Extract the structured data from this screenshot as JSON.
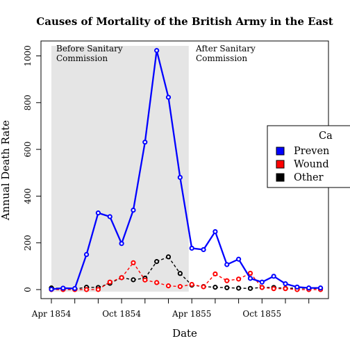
{
  "chart_data": {
    "type": "line",
    "title": "Causes of Mortality of the British Army in the East",
    "xlabel": "Date",
    "ylabel": "Annual Death Rate",
    "x_ticks": [
      "Apr 1854",
      "Oct 1854",
      "Apr 1855",
      "Oct 1855"
    ],
    "y_ticks": [
      0,
      200,
      400,
      600,
      800,
      1000
    ],
    "ylim": [
      -30,
      1050
    ],
    "x": [
      "Apr 1854",
      "May 1854",
      "Jun 1854",
      "Jul 1854",
      "Aug 1854",
      "Sep 1854",
      "Oct 1854",
      "Nov 1854",
      "Dec 1854",
      "Jan 1855",
      "Feb 1855",
      "Mar 1855",
      "Apr 1855",
      "May 1855",
      "Jun 1855",
      "Jul 1855",
      "Aug 1855",
      "Sep 1855",
      "Oct 1855",
      "Nov 1855",
      "Dec 1855",
      "Jan 1856",
      "Feb 1856",
      "Mar 1856"
    ],
    "series": [
      {
        "name": "Preventable",
        "color": "#0000ff",
        "line_style": "solid",
        "values": [
          1.4,
          6.2,
          4.7,
          150,
          328,
          312,
          197,
          340,
          631,
          1023,
          823,
          480,
          177,
          171,
          248,
          107,
          130,
          48,
          32,
          57,
          25,
          11,
          7,
          7
        ]
      },
      {
        "name": "Wounds",
        "color": "#ff0000",
        "line_style": "dashed",
        "values": [
          0,
          0,
          0,
          0,
          0.4,
          32,
          51,
          115,
          41,
          30,
          16,
          13,
          22,
          12,
          67,
          38,
          45,
          70,
          9,
          4,
          4,
          0,
          0,
          0
        ]
      },
      {
        "name": "Other",
        "color": "#000000",
        "line_style": "dashed",
        "values": [
          7,
          5,
          2.5,
          10,
          9,
          27,
          51,
          42,
          49,
          120,
          140,
          69,
          19,
          13,
          10,
          8,
          6,
          5,
          9,
          9,
          5,
          7,
          5,
          5
        ]
      }
    ],
    "shaded_region": {
      "from": "Apr 1854",
      "to": "Mar 1855",
      "color": "#e5e5e5"
    },
    "annotations": [
      {
        "lines": [
          "Before Sanitary",
          "Commission"
        ]
      },
      {
        "lines": [
          "After Sanitary",
          "Commission"
        ]
      }
    ],
    "legend": {
      "title": "Ca",
      "placement": "right",
      "entries": [
        "Preven",
        "Wound",
        "Other"
      ]
    },
    "grid": false
  }
}
